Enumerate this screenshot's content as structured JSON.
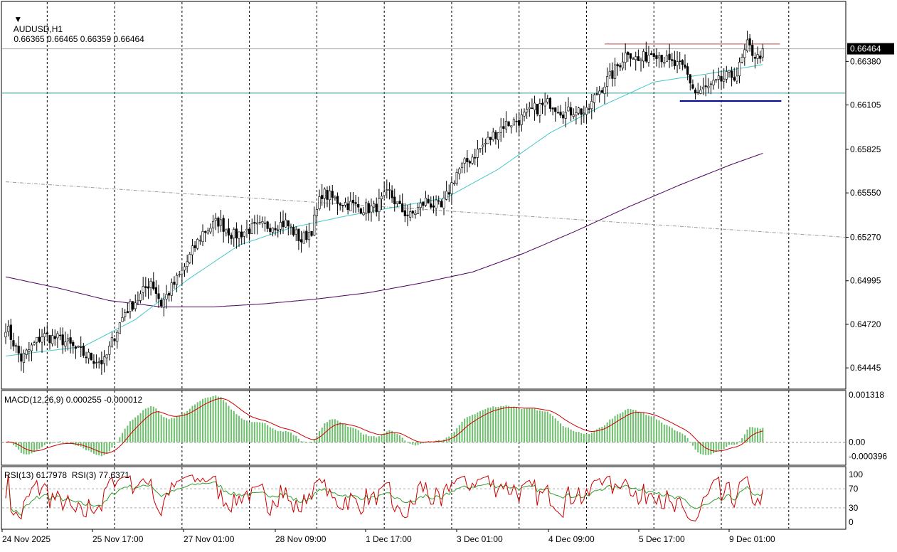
{
  "header": {
    "symbol": "AUDUSD,H1",
    "ohlc": "0.66365 0.66465 0.66359 0.66464"
  },
  "price_axis": {
    "labels": [
      "0.66380",
      "0.66105",
      "0.65825",
      "0.65550",
      "0.65270",
      "0.64995",
      "0.64720",
      "0.64445"
    ],
    "current_price": "0.66464"
  },
  "macd": {
    "title": "MACD(12,26,9) 0.000255 -0.000012",
    "axis_labels": [
      "0.001318",
      "0.00",
      "-0.000396"
    ]
  },
  "rsi": {
    "title": "RSI(13) 61.7978  RSI(3) 77.6371",
    "axis_labels": [
      "100",
      "70",
      "30",
      "0"
    ]
  },
  "time_axis": {
    "labels": [
      "24 Nov 2025",
      "25 Nov 17:00",
      "27 Nov 01:00",
      "28 Nov 09:00",
      "1 Dec 17:00",
      "3 Dec 01:00",
      "4 Dec 09:00",
      "5 Dec 17:00",
      "9 Dec 01:00"
    ]
  },
  "colors": {
    "bull_candle": "#006400",
    "bear_candle": "#8b0000",
    "ma_fast": "#44c8c8",
    "ma_slow": "#4b0060",
    "macd_hist": "#6dbf6d",
    "macd_signal": "#cc0000",
    "rsi13": "#2ca02c",
    "rsi3": "#cc0000",
    "resistance": "#c04040",
    "support": "#0000cc",
    "hline": "#339999"
  },
  "chart_data": {
    "type": "candlestick",
    "title": "AUDUSD,H1",
    "ylim": [
      0.6432,
      0.6675
    ],
    "anchors_close": [
      [
        0,
        0.6471
      ],
      [
        6,
        0.645
      ],
      [
        14,
        0.6465
      ],
      [
        22,
        0.6462
      ],
      [
        28,
        0.6455
      ],
      [
        34,
        0.645
      ],
      [
        38,
        0.6448
      ],
      [
        42,
        0.6465
      ],
      [
        46,
        0.648
      ],
      [
        52,
        0.649
      ],
      [
        56,
        0.65
      ],
      [
        60,
        0.6485
      ],
      [
        64,
        0.6495
      ],
      [
        68,
        0.6505
      ],
      [
        72,
        0.6518
      ],
      [
        76,
        0.653
      ],
      [
        82,
        0.6537
      ],
      [
        88,
        0.6528
      ],
      [
        94,
        0.6532
      ],
      [
        100,
        0.6534
      ],
      [
        108,
        0.6536
      ],
      [
        114,
        0.6525
      ],
      [
        118,
        0.6532
      ],
      [
        122,
        0.6555
      ],
      [
        128,
        0.655
      ],
      [
        136,
        0.6546
      ],
      [
        142,
        0.6545
      ],
      [
        148,
        0.6555
      ],
      [
        152,
        0.6545
      ],
      [
        156,
        0.654
      ],
      [
        162,
        0.655
      ],
      [
        168,
        0.6545
      ],
      [
        174,
        0.6568
      ],
      [
        180,
        0.6578
      ],
      [
        186,
        0.6588
      ],
      [
        192,
        0.6598
      ],
      [
        198,
        0.6601
      ],
      [
        204,
        0.6608
      ],
      [
        210,
        0.6612
      ],
      [
        216,
        0.6605
      ],
      [
        220,
        0.6608
      ],
      [
        224,
        0.6605
      ],
      [
        228,
        0.6618
      ],
      [
        234,
        0.663
      ],
      [
        240,
        0.6645
      ],
      [
        244,
        0.6638
      ],
      [
        250,
        0.6645
      ],
      [
        256,
        0.6637
      ],
      [
        262,
        0.6633
      ],
      [
        266,
        0.6618
      ],
      [
        272,
        0.6622
      ],
      [
        278,
        0.6628
      ],
      [
        282,
        0.663
      ],
      [
        286,
        0.6648
      ],
      [
        290,
        0.664
      ],
      [
        292,
        0.6646
      ]
    ],
    "anchors_ma_fast": [
      [
        0,
        0.6452
      ],
      [
        30,
        0.6458
      ],
      [
        50,
        0.6475
      ],
      [
        70,
        0.65
      ],
      [
        90,
        0.6522
      ],
      [
        110,
        0.6533
      ],
      [
        130,
        0.654
      ],
      [
        150,
        0.6546
      ],
      [
        170,
        0.6552
      ],
      [
        190,
        0.657
      ],
      [
        210,
        0.6593
      ],
      [
        230,
        0.661
      ],
      [
        250,
        0.6625
      ],
      [
        270,
        0.663
      ],
      [
        292,
        0.6636
      ]
    ],
    "anchors_ma_slow": [
      [
        0,
        0.6502
      ],
      [
        20,
        0.6495
      ],
      [
        40,
        0.6487
      ],
      [
        60,
        0.6483
      ],
      [
        80,
        0.6483
      ],
      [
        100,
        0.6485
      ],
      [
        120,
        0.6488
      ],
      [
        140,
        0.6492
      ],
      [
        160,
        0.6498
      ],
      [
        180,
        0.6505
      ],
      [
        200,
        0.6517
      ],
      [
        220,
        0.6531
      ],
      [
        240,
        0.6546
      ],
      [
        260,
        0.656
      ],
      [
        280,
        0.6573
      ],
      [
        292,
        0.658
      ]
    ],
    "resistance_level": 0.6649,
    "support_level": 0.6613,
    "hline_level": 0.6618,
    "trendline": [
      [
        0,
        0.6562
      ],
      [
        330,
        0.6527
      ]
    ],
    "bars": 293,
    "macd_ylim": [
      -0.0006,
      0.0014
    ],
    "rsi_ylim": [
      0,
      100
    ],
    "rsi_levels": [
      70,
      30
    ]
  }
}
